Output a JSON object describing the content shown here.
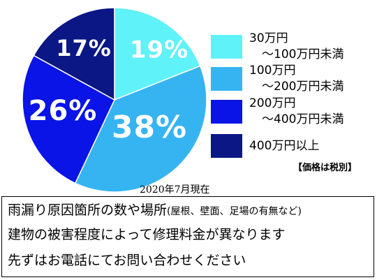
{
  "chart_data": {
    "type": "pie",
    "slices": [
      {
        "label": "30万円〜100万円未満",
        "value": 19,
        "display": "19%",
        "color": "#5ff2f8",
        "text_color": "#ffffff"
      },
      {
        "label": "100万円〜200万円未満",
        "value": 38,
        "display": "38%",
        "color": "#36b4f1",
        "text_color": "#ffffff"
      },
      {
        "label": "200万円〜400万円未満",
        "value": 26,
        "display": "26%",
        "color": "#0a14e6",
        "text_color": "#ffffff"
      },
      {
        "label": "400万円以上",
        "value": 17,
        "display": "17%",
        "color": "#0a1784",
        "text_color": "#ffffff"
      }
    ],
    "legend": [
      {
        "line1": "30万円",
        "line2": "〜100万円未満",
        "color": "#5ff2f8"
      },
      {
        "line1": "100万円",
        "line2": "〜200万円未満",
        "color": "#36b4f1"
      },
      {
        "line1": "200万円",
        "line2": "〜400万円未満",
        "color": "#0a14e6"
      },
      {
        "line1": "400万円以上",
        "line2": "",
        "color": "#0a1784"
      }
    ]
  },
  "note": "【価格は税別】",
  "date": "2020年7月現在",
  "info": {
    "line1_main": "雨漏り原因箇所の数や場所",
    "line1_sub": "(屋根、壁面、足場の有無など)",
    "line2": "建物の被害程度によって修理料金が異なります",
    "line3": "先ずはお電話にてお問い合わせください"
  }
}
